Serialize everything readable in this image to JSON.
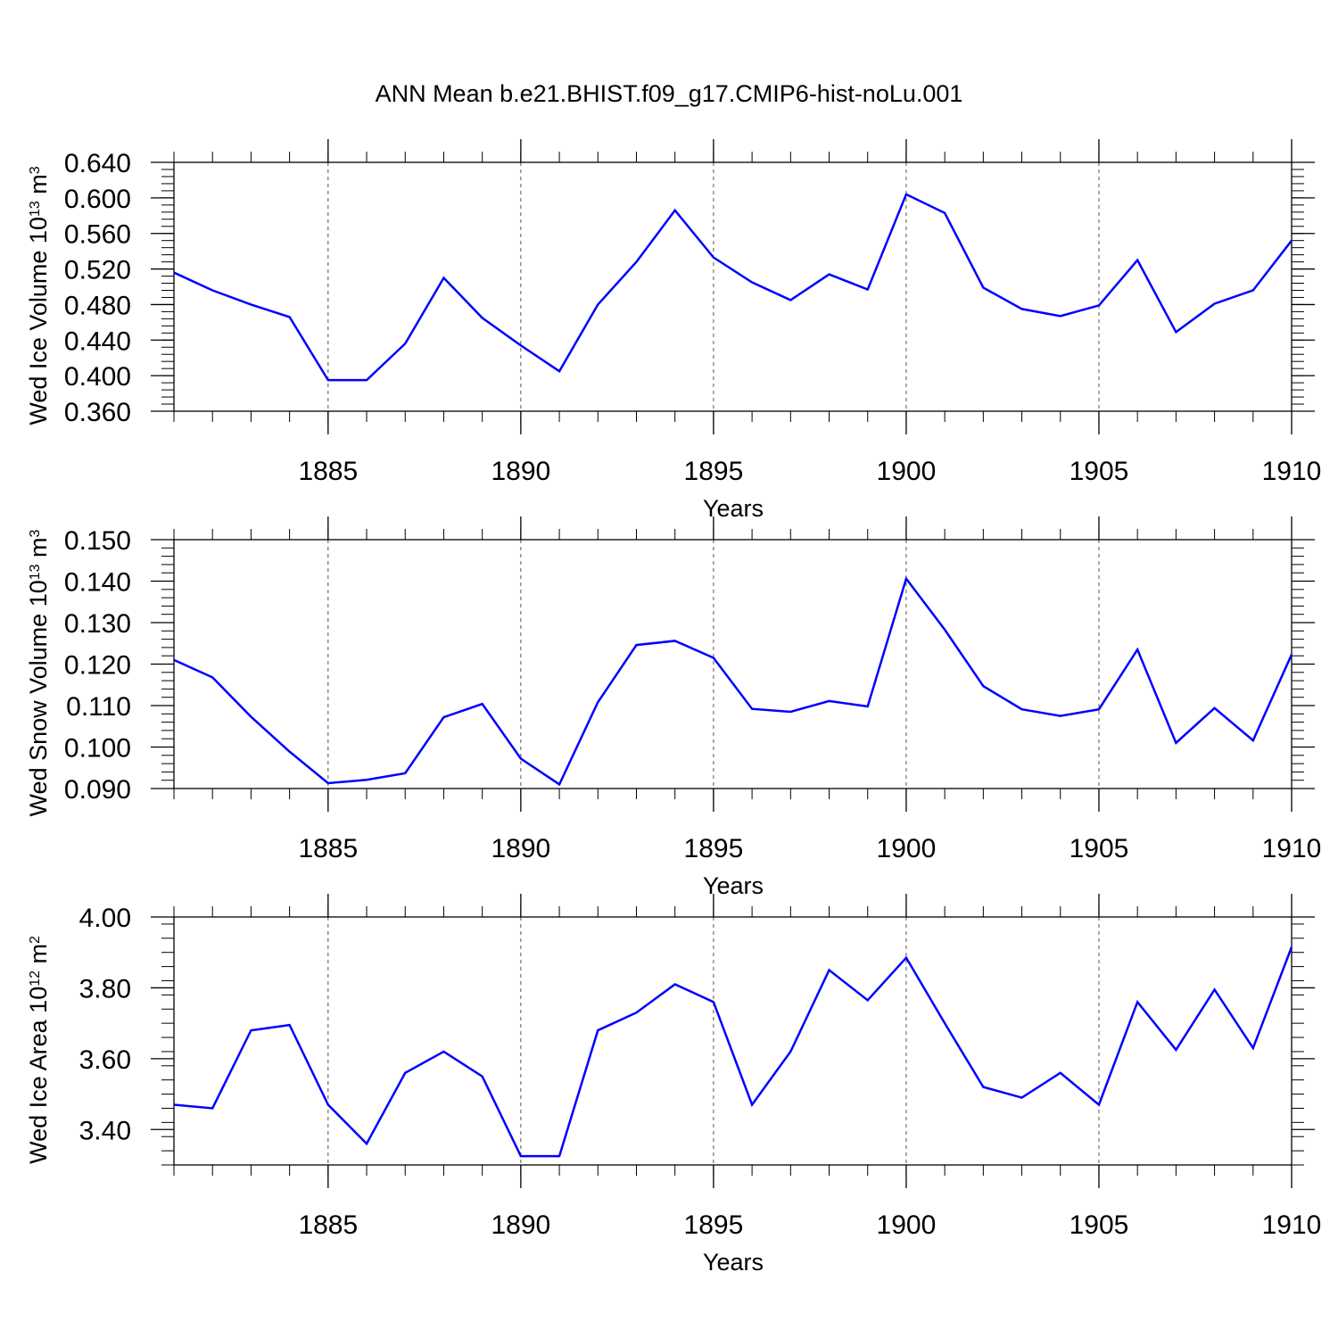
{
  "title": "ANN Mean b.e21.BHIST.f09_g17.CMIP6-hist-noLu.001",
  "chart_data": [
    {
      "type": "line",
      "ylabel": "Wed Ice Volume 10",
      "ylabel_exp": "13",
      "ylabel_unit": " m",
      "ylabel_unit_exp": "3",
      "xlabel": "Years",
      "xlim": [
        1881,
        1910
      ],
      "ylim": [
        0.36,
        0.64
      ],
      "yticks": [
        "0.360",
        "0.400",
        "0.440",
        "0.480",
        "0.520",
        "0.560",
        "0.600",
        "0.640"
      ],
      "xticks": [
        "1885",
        "1890",
        "1895",
        "1900",
        "1905",
        "1910"
      ],
      "line_color": "#0000ff",
      "grid": "vertical dashed at major x ticks",
      "x": [
        1881,
        1882,
        1883,
        1884,
        1885,
        1886,
        1887,
        1888,
        1889,
        1890,
        1891,
        1892,
        1893,
        1894,
        1895,
        1896,
        1897,
        1898,
        1899,
        1900,
        1901,
        1902,
        1903,
        1904,
        1905,
        1906,
        1907,
        1908,
        1909,
        1910
      ],
      "values": [
        0.516,
        0.496,
        0.48,
        0.466,
        0.395,
        0.395,
        0.436,
        0.51,
        0.465,
        0.434,
        0.405,
        0.48,
        0.528,
        0.586,
        0.533,
        0.505,
        0.485,
        0.514,
        0.497,
        0.604,
        0.583,
        0.499,
        0.475,
        0.467,
        0.479,
        0.53,
        0.449,
        0.481,
        0.496,
        0.552
      ]
    },
    {
      "type": "line",
      "ylabel": "Wed Snow Volume 10",
      "ylabel_exp": "13",
      "ylabel_unit": " m",
      "ylabel_unit_exp": "3",
      "xlabel": "Years",
      "xlim": [
        1881,
        1910
      ],
      "ylim": [
        0.09,
        0.15
      ],
      "yticks": [
        "0.090",
        "0.100",
        "0.110",
        "0.120",
        "0.130",
        "0.140",
        "0.150"
      ],
      "xticks": [
        "1885",
        "1890",
        "1895",
        "1900",
        "1905",
        "1910"
      ],
      "line_color": "#0000ff",
      "grid": "vertical dashed at major x ticks",
      "x": [
        1881,
        1882,
        1883,
        1884,
        1885,
        1886,
        1887,
        1888,
        1889,
        1890,
        1891,
        1892,
        1893,
        1894,
        1895,
        1896,
        1897,
        1898,
        1899,
        1900,
        1901,
        1902,
        1903,
        1904,
        1905,
        1906,
        1907,
        1908,
        1909,
        1910
      ],
      "values": [
        0.121,
        0.1168,
        0.1073,
        0.0989,
        0.0913,
        0.0921,
        0.0937,
        0.1072,
        0.1104,
        0.0972,
        0.091,
        0.1108,
        0.1246,
        0.1256,
        0.1215,
        0.1092,
        0.1085,
        0.1111,
        0.1098,
        0.1406,
        0.1283,
        0.1147,
        0.1091,
        0.1075,
        0.1091,
        0.1235,
        0.101,
        0.1094,
        0.1016,
        0.1223
      ]
    },
    {
      "type": "line",
      "ylabel": "Wed Ice Area 10",
      "ylabel_exp": "12",
      "ylabel_unit": " m",
      "ylabel_unit_exp": "2",
      "xlabel": "Years",
      "xlim": [
        1881,
        1910
      ],
      "ylim": [
        3.3,
        4.0
      ],
      "yticks": [
        "3.40",
        "3.60",
        "3.80",
        "4.00"
      ],
      "xticks": [
        "1885",
        "1890",
        "1895",
        "1900",
        "1905",
        "1910"
      ],
      "line_color": "#0000ff",
      "grid": "vertical dashed at major x ticks",
      "x": [
        1881,
        1882,
        1883,
        1884,
        1885,
        1886,
        1887,
        1888,
        1889,
        1890,
        1891,
        1892,
        1893,
        1894,
        1895,
        1896,
        1897,
        1898,
        1899,
        1900,
        1901,
        1902,
        1903,
        1904,
        1905,
        1906,
        1907,
        1908,
        1909,
        1910
      ],
      "values": [
        3.47,
        3.46,
        3.68,
        3.695,
        3.47,
        3.36,
        3.56,
        3.62,
        3.55,
        3.325,
        3.325,
        3.68,
        3.73,
        3.81,
        3.76,
        3.47,
        3.62,
        3.85,
        3.765,
        3.885,
        3.7,
        3.52,
        3.49,
        3.56,
        3.47,
        3.76,
        3.625,
        3.795,
        3.63,
        3.915
      ]
    }
  ]
}
